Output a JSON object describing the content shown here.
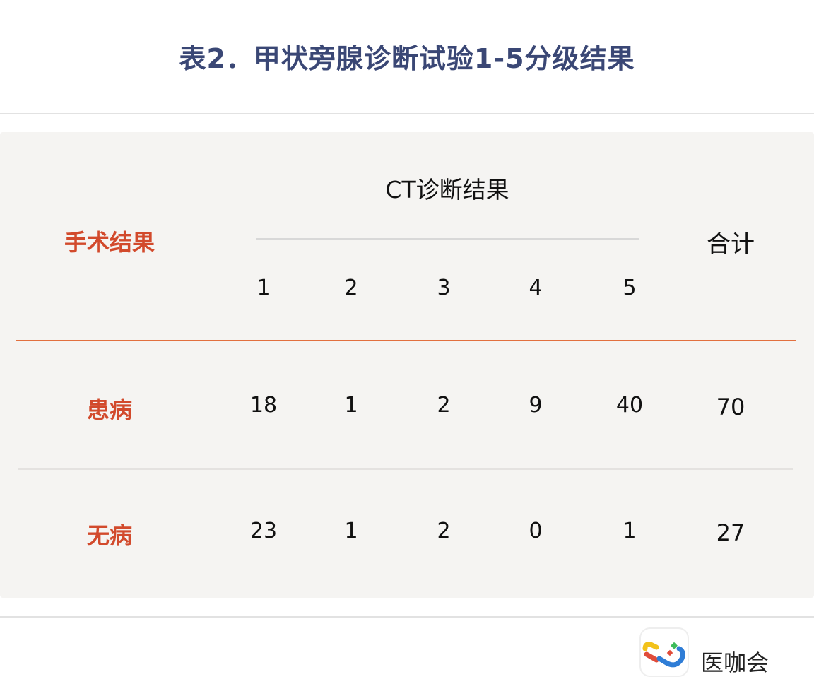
{
  "title": "表2．甲状旁腺诊断试验1-5分级结果",
  "table": {
    "row_header": "手术结果",
    "group_header": "CT诊断结果",
    "total_header": "合计",
    "grades": [
      "1",
      "2",
      "3",
      "4",
      "5"
    ],
    "rows": [
      {
        "label": "患病",
        "values": [
          "18",
          "1",
          "2",
          "9",
          "40"
        ],
        "total": "70"
      },
      {
        "label": "无病",
        "values": [
          "23",
          "1",
          "2",
          "0",
          "1"
        ],
        "total": "27"
      }
    ]
  },
  "brand": {
    "name": "医咖会",
    "icon": "yika-logo"
  },
  "colors": {
    "title": "#3a4775",
    "label": "#d24a2c",
    "accent_line": "#e2703f",
    "panel": "#f5f4f2"
  }
}
